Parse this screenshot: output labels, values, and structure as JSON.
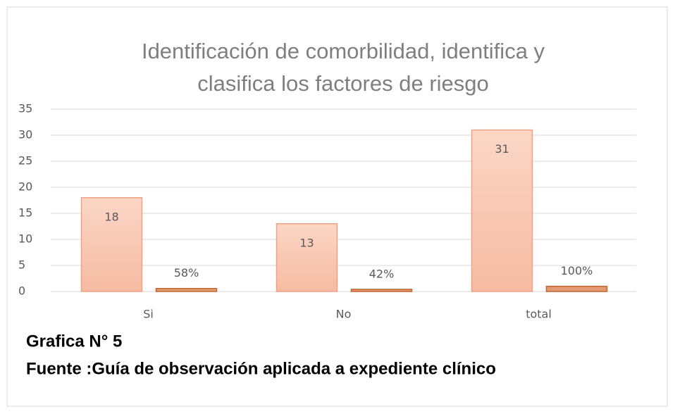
{
  "chart_data": {
    "type": "bar",
    "title": [
      "Identificación de comorbilidad, identifica y",
      "clasifica los factores de riesgo"
    ],
    "categories": [
      "Si",
      "No",
      "total"
    ],
    "series": [
      {
        "color": "#f7c3ad",
        "values": [
          18,
          13,
          31
        ]
      },
      {
        "color": "#e39a72",
        "values": [
          0.58,
          0.42,
          1
        ],
        "value_labels": [
          "58%",
          "42%",
          "100%"
        ]
      }
    ],
    "ylim": [
      0,
      35
    ],
    "yticks": [
      0,
      5,
      10,
      15,
      20,
      25,
      30,
      35
    ],
    "grid": true,
    "caption": [
      "Grafica N° 5",
      "Fuente :Guía de observación aplicada a expediente clínico"
    ]
  }
}
